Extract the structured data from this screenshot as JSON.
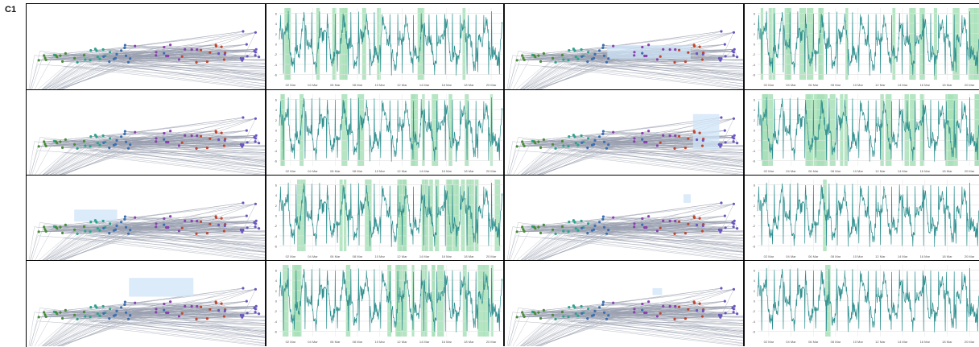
{
  "figure_label": "C1",
  "chart_data": {
    "type": "line",
    "x_ticks": [
      "02 Mar",
      "04 Mar",
      "06 Mar",
      "08 Mar",
      "10 Mar",
      "12 Mar",
      "14 Mar",
      "16 Mar",
      "18 Mar",
      "20 Mar"
    ],
    "y_ticks": [
      6,
      4,
      2,
      0,
      -2,
      -4,
      -6
    ],
    "ylim": [
      -7,
      7
    ],
    "grid": true,
    "colors": {
      "series": "#2f8f8f",
      "highlight": "#a8e0b8",
      "brush": "#cfe4f7",
      "edges": "#9aa0b0",
      "clusters": [
        "#4a8a3a",
        "#2aa58a",
        "#3b6fb0",
        "#8a3fb0",
        "#c0472f",
        "#6a55c0"
      ]
    },
    "panels": [
      {
        "brush": [
          0.0,
          0.0,
          0.0,
          0.0
        ],
        "highlight_count": 0.33
      },
      {
        "brush": [
          0.43,
          0.48,
          0.78,
          0.64
        ],
        "highlight_count": 0.58
      },
      {
        "brush": [
          0.0,
          0.0,
          0.0,
          0.0
        ],
        "highlight_count": 0.36
      },
      {
        "brush": [
          0.79,
          0.28,
          0.9,
          0.7
        ],
        "highlight_count": 0.78
      },
      {
        "brush": [
          0.2,
          0.4,
          0.38,
          0.54
        ],
        "highlight_count": 0.7
      },
      {
        "brush": [
          0.75,
          0.22,
          0.78,
          0.32
        ],
        "highlight_count": 0.02
      },
      {
        "brush": [
          0.43,
          0.2,
          0.7,
          0.42
        ],
        "highlight_count": 0.58
      },
      {
        "brush": [
          0.62,
          0.32,
          0.66,
          0.4
        ],
        "highlight_count": 0.02
      }
    ]
  }
}
